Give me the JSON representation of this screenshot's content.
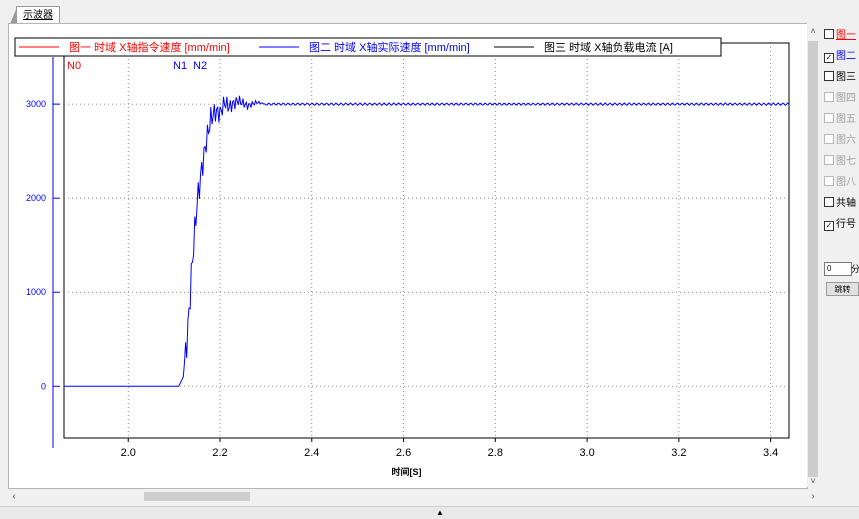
{
  "tab": {
    "label": "示波器"
  },
  "chart_data": {
    "type": "line",
    "title": "",
    "xlabel": "时间[S]",
    "ylabel": "",
    "xlim": [
      1.86,
      3.44
    ],
    "ylim": [
      -550,
      3650
    ],
    "x_ticks": [
      2.0,
      2.2,
      2.4,
      2.6,
      2.8,
      3.0,
      3.2,
      3.4
    ],
    "y_ticks": [
      0,
      1000,
      2000,
      3000
    ],
    "x_tick_labels": [
      "2.0",
      "2.2",
      "2.4",
      "2.6",
      "2.8",
      "3.0",
      "3.2",
      "3.4"
    ],
    "y_tick_labels": [
      "0",
      "1000",
      "2000",
      "3000"
    ],
    "grid": true,
    "legend_position": "top",
    "legend": [
      {
        "label": "图一 时域 X轴指令速度 [mm/min]",
        "color": "#ff0000"
      },
      {
        "label": "图二 时域 X轴实际速度 [mm/min]",
        "color": "#0000ff"
      },
      {
        "label": "图三 时域 X轴负载电流 [A]",
        "color": "#000000"
      }
    ],
    "markers": [
      {
        "label": "N0",
        "x": 1.86,
        "color": "#ff0000"
      },
      {
        "label": "N1",
        "x": 2.11,
        "color": "#0000ff"
      },
      {
        "label": "N2",
        "x": 2.15,
        "color": "#0000ff"
      }
    ],
    "series": [
      {
        "name": "图二 时域 X轴实际速度 [mm/min]",
        "color": "#0000ff",
        "x": [
          1.86,
          2.0,
          2.11,
          2.12,
          2.13,
          2.14,
          2.15,
          2.16,
          2.17,
          2.18,
          2.19,
          2.2,
          2.21,
          2.22,
          2.24,
          2.26,
          2.28,
          2.3,
          2.35,
          2.4,
          2.6,
          2.8,
          3.0,
          3.2,
          3.44
        ],
        "y": [
          0,
          0,
          0,
          100,
          600,
          1350,
          1950,
          2300,
          2600,
          2850,
          2920,
          2900,
          3020,
          2970,
          3040,
          2980,
          3020,
          3000,
          3000,
          3000,
          3000,
          3000,
          3000,
          3000,
          3000
        ]
      }
    ]
  },
  "side_panel": {
    "checkboxes": [
      {
        "label": "图一",
        "checked": false,
        "enabled": true,
        "color": "#ff0000"
      },
      {
        "label": "图二",
        "checked": true,
        "enabled": true,
        "color": "#0000ff"
      },
      {
        "label": "图三",
        "checked": false,
        "enabled": true,
        "color": "#000000"
      },
      {
        "label": "图四",
        "checked": false,
        "enabled": false,
        "color": "#a0a0a0"
      },
      {
        "label": "图五",
        "checked": false,
        "enabled": false,
        "color": "#a0a0a0"
      },
      {
        "label": "图六",
        "checked": false,
        "enabled": false,
        "color": "#a0a0a0"
      },
      {
        "label": "图七",
        "checked": false,
        "enabled": false,
        "color": "#a0a0a0"
      },
      {
        "label": "图八",
        "checked": false,
        "enabled": false,
        "color": "#a0a0a0"
      },
      {
        "label": "共轴",
        "checked": false,
        "enabled": true,
        "color": "#000000"
      },
      {
        "label": "行号",
        "checked": true,
        "enabled": true,
        "color": "#000000"
      }
    ],
    "minute_value": "0",
    "minute_label": "分",
    "jump_label": "跳转"
  }
}
